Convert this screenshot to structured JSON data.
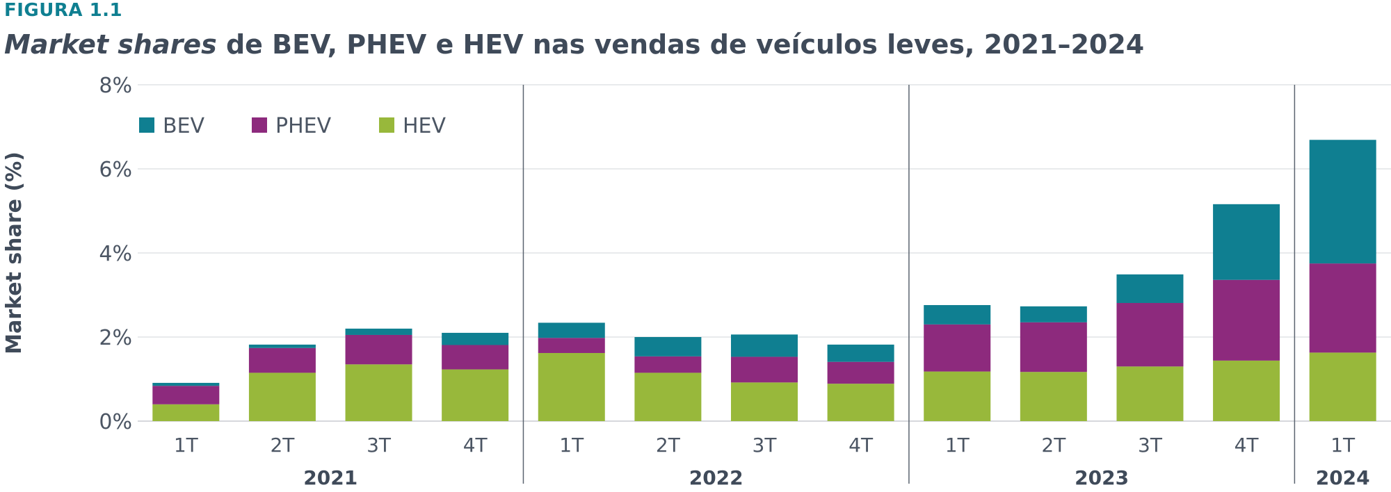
{
  "figure": {
    "label": "FIGURA 1.1",
    "title_italic": "Market shares",
    "title_rest": " de BEV, PHEV e HEV nas vendas de veículos leves, 2021–2024"
  },
  "chart_data": {
    "type": "bar",
    "stacked": true,
    "title": "Market shares de BEV, PHEV e HEV nas vendas de veículos leves, 2021–2024",
    "xlabel": "",
    "ylabel": "Market share (%)",
    "ylim": [
      0,
      8
    ],
    "yticks": [
      "0%",
      "2%",
      "4%",
      "6%",
      "8%"
    ],
    "ytick_values": [
      0,
      2,
      4,
      6,
      8
    ],
    "grid": true,
    "legend_position": "top-left",
    "categories": [
      "1T",
      "2T",
      "3T",
      "4T",
      "1T",
      "2T",
      "3T",
      "4T",
      "1T",
      "2T",
      "3T",
      "4T",
      "1T"
    ],
    "groups": [
      {
        "label": "2021",
        "count": 4
      },
      {
        "label": "2022",
        "count": 4
      },
      {
        "label": "2023",
        "count": 4
      },
      {
        "label": "2024",
        "count": 1
      }
    ],
    "series": [
      {
        "name": "HEV",
        "color": "#98b83b",
        "values": [
          0.4,
          1.15,
          1.35,
          1.23,
          1.62,
          1.15,
          0.92,
          0.89,
          1.18,
          1.17,
          1.3,
          1.44,
          1.63
        ]
      },
      {
        "name": "PHEV",
        "color": "#8d2a7d",
        "values": [
          0.44,
          0.59,
          0.7,
          0.58,
          0.36,
          0.39,
          0.61,
          0.52,
          1.12,
          1.18,
          1.51,
          1.92,
          2.12
        ]
      },
      {
        "name": "BEV",
        "color": "#0f7f91",
        "values": [
          0.07,
          0.08,
          0.15,
          0.29,
          0.36,
          0.46,
          0.53,
          0.41,
          0.46,
          0.38,
          0.68,
          1.8,
          2.94
        ]
      }
    ]
  }
}
